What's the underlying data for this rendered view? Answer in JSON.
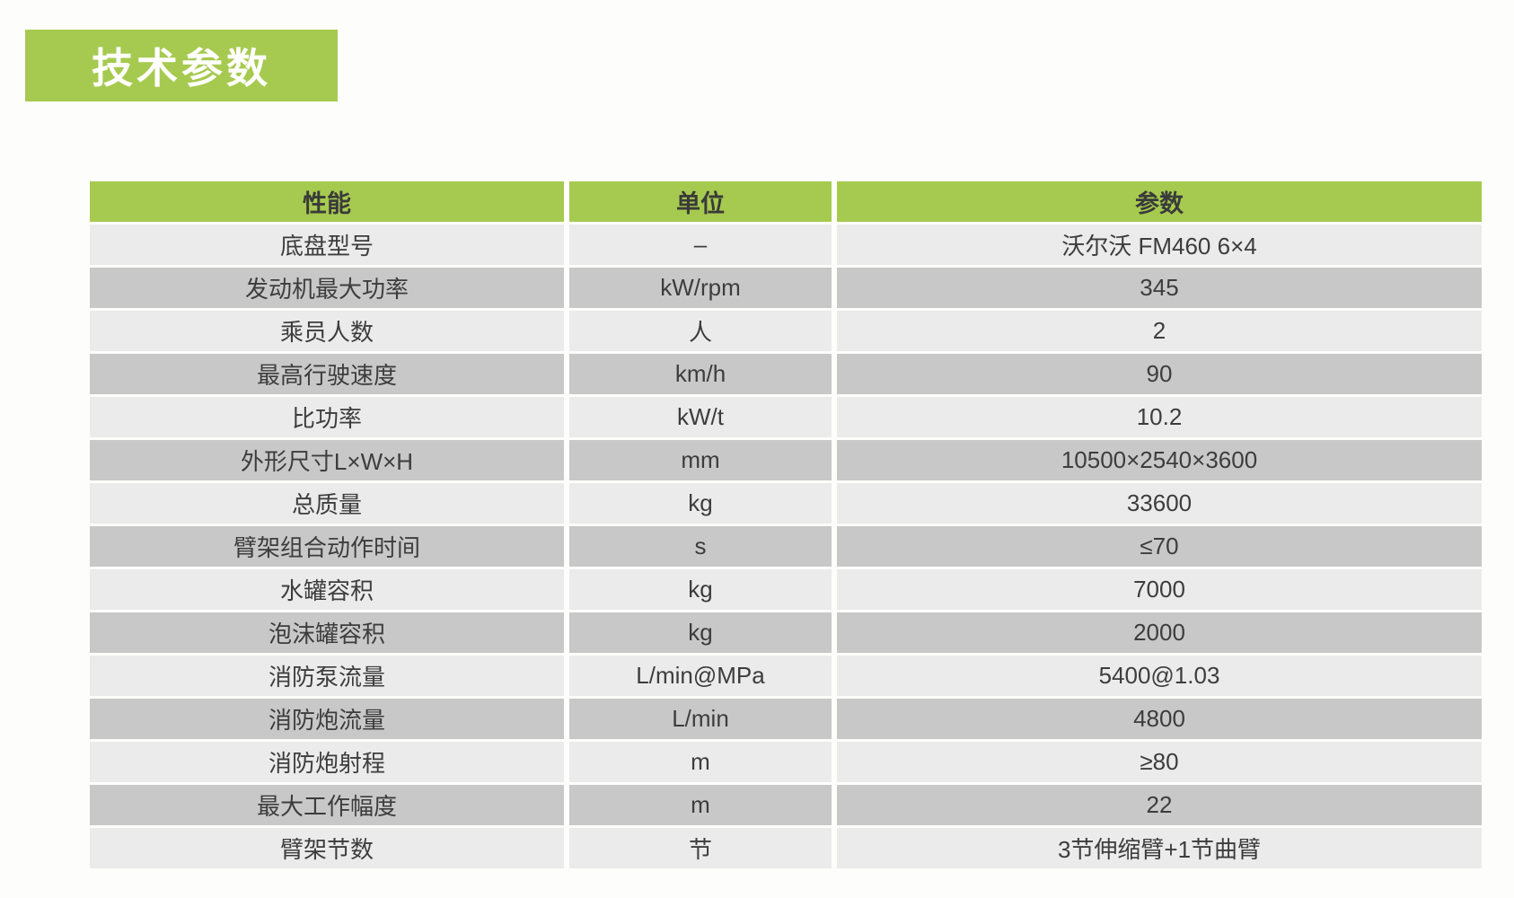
{
  "title_badge": {
    "label": "技术参数",
    "background": "#a6ca4f",
    "text_color": "#ffffff"
  },
  "table": {
    "columns": [
      {
        "key": "name",
        "label": "性能"
      },
      {
        "key": "unit",
        "label": "单位"
      },
      {
        "key": "value",
        "label": "参数"
      }
    ],
    "rows": [
      {
        "name": "底盘型号",
        "unit": "–",
        "value": "沃尔沃 FM460 6×4"
      },
      {
        "name": "发动机最大功率",
        "unit": "kW/rpm",
        "value": "345"
      },
      {
        "name": "乘员人数",
        "unit": "人",
        "value": "2"
      },
      {
        "name": "最高行驶速度",
        "unit": "km/h",
        "value": "90"
      },
      {
        "name": "比功率",
        "unit": "kW/t",
        "value": "10.2"
      },
      {
        "name": "外形尺寸L×W×H",
        "unit": "mm",
        "value": "10500×2540×3600"
      },
      {
        "name": "总质量",
        "unit": "kg",
        "value": "33600"
      },
      {
        "name": "臂架组合动作时间",
        "unit": "s",
        "value": "≤70"
      },
      {
        "name": "水罐容积",
        "unit": "kg",
        "value": "7000"
      },
      {
        "name": "泡沫罐容积",
        "unit": "kg",
        "value": "2000"
      },
      {
        "name": "消防泵流量",
        "unit": "L/min@MPa",
        "value": "5400@1.03"
      },
      {
        "name": "消防炮流量",
        "unit": "L/min",
        "value": "4800"
      },
      {
        "name": "消防炮射程",
        "unit": "m",
        "value": "≥80"
      },
      {
        "name": "最大工作幅度",
        "unit": "m",
        "value": "22"
      },
      {
        "name": "臂架节数",
        "unit": "节",
        "value": "3节伸缩臂+1节曲臂"
      }
    ],
    "colors": {
      "header_bg": "#a6ca4f",
      "row_light": "#ebebeb",
      "row_dark": "#c8c8c8",
      "text": "#3d3d3d"
    }
  }
}
